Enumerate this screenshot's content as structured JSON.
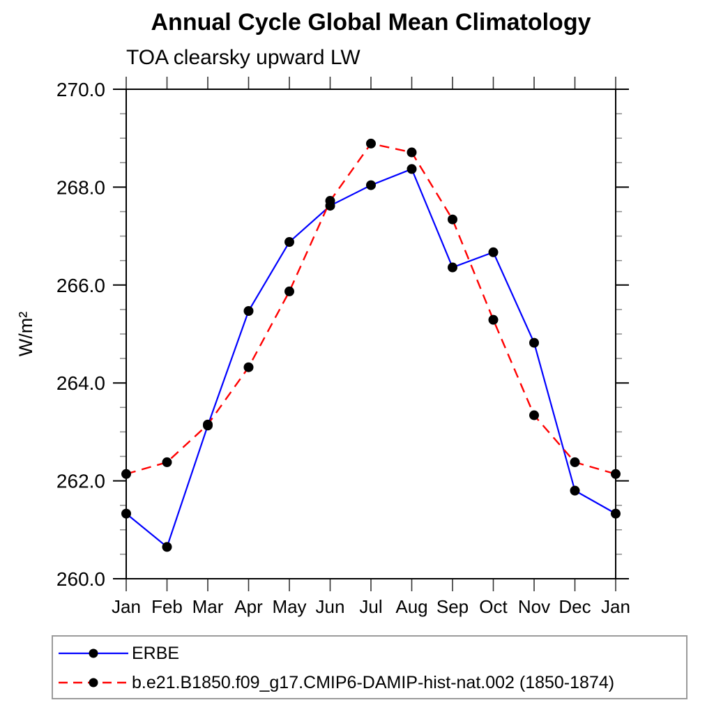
{
  "chart_data": {
    "type": "line",
    "title": "Annual Cycle Global Mean Climatology",
    "subtitle": "TOA clearsky upward LW",
    "ylabel": "W/m²",
    "xlabel": "",
    "ylim": [
      260.0,
      270.0
    ],
    "ytick_major": [
      260.0,
      262.0,
      264.0,
      266.0,
      268.0,
      270.0
    ],
    "ytick_labels": [
      "260.0",
      "262.0",
      "264.0",
      "266.0",
      "268.0",
      "270.0"
    ],
    "ytick_minor_interval": 0.5,
    "grid": false,
    "legend_position": "bottom box",
    "categories": [
      "Jan",
      "Feb",
      "Mar",
      "Apr",
      "May",
      "Jun",
      "Jul",
      "Aug",
      "Sep",
      "Oct",
      "Nov",
      "Dec",
      "Jan"
    ],
    "series": [
      {
        "name": "ERBE",
        "color": "#0000ff",
        "line_style": "solid",
        "marker": "filled-circle",
        "marker_color": "#000000",
        "values": [
          261.33,
          260.65,
          263.13,
          265.47,
          266.88,
          267.62,
          268.04,
          268.37,
          266.36,
          266.67,
          264.82,
          261.8,
          261.33
        ]
      },
      {
        "name": "b.e21.B1850.f09_g17.CMIP6-DAMIP-hist-nat.002 (1850-1874)",
        "color": "#ff0000",
        "line_style": "dashed",
        "marker": "filled-circle",
        "marker_color": "#000000",
        "values": [
          262.14,
          262.38,
          263.15,
          264.32,
          265.87,
          267.72,
          268.89,
          268.71,
          267.34,
          265.29,
          263.34,
          262.38,
          262.14
        ]
      }
    ]
  }
}
